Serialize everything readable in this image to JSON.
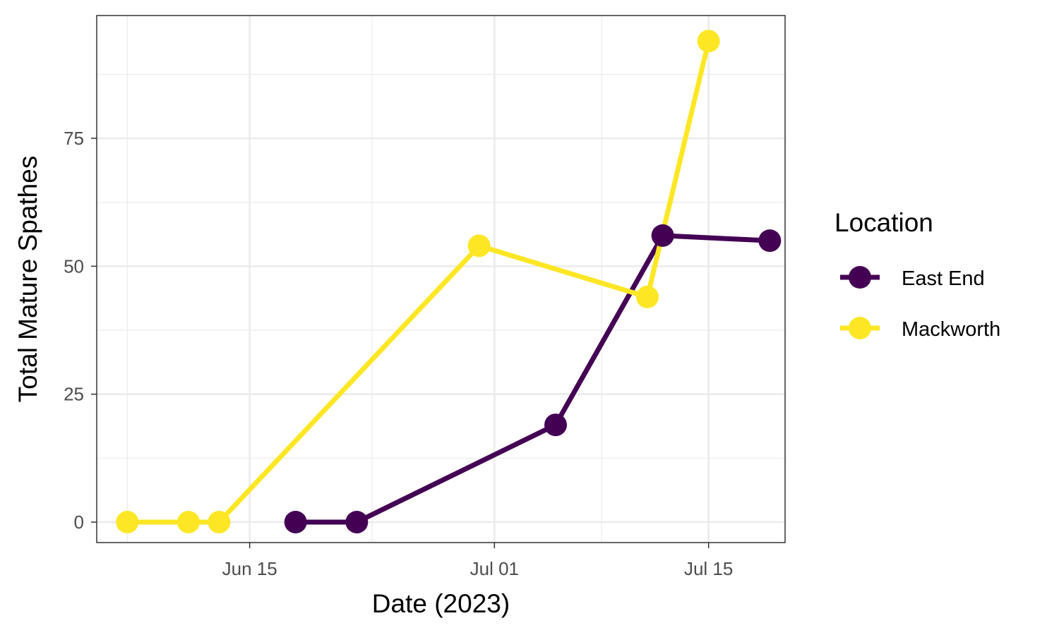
{
  "chart_data": {
    "type": "line",
    "title": "",
    "xlabel": "Date (2023)",
    "ylabel": "Total Mature Spathes",
    "xlim": [
      "2023-06-05",
      "2023-07-20"
    ],
    "ylim": [
      -4,
      99
    ],
    "x_ticks": [
      {
        "date": "2023-06-15",
        "label": "Jun 15"
      },
      {
        "date": "2023-07-01",
        "label": "Jul 01"
      },
      {
        "date": "2023-07-15",
        "label": "Jul 15"
      }
    ],
    "x_minor_ticks": [
      "2023-06-07",
      "2023-06-23",
      "2023-07-08"
    ],
    "y_ticks": [
      0,
      25,
      50,
      75
    ],
    "y_minor_ticks": [
      12.5,
      37.5,
      62.5,
      87.5
    ],
    "grid": true,
    "legend": {
      "title": "Location",
      "position": "right"
    },
    "series": [
      {
        "name": "East End",
        "color": "#440154",
        "points": [
          {
            "x": "2023-06-18",
            "y": 0
          },
          {
            "x": "2023-06-22",
            "y": 0
          },
          {
            "x": "2023-07-05",
            "y": 19
          },
          {
            "x": "2023-07-12",
            "y": 56
          },
          {
            "x": "2023-07-19",
            "y": 55
          }
        ]
      },
      {
        "name": "Mackworth",
        "color": "#FDE725",
        "points": [
          {
            "x": "2023-06-07",
            "y": 0
          },
          {
            "x": "2023-06-11",
            "y": 0
          },
          {
            "x": "2023-06-13",
            "y": 0
          },
          {
            "x": "2023-06-30",
            "y": 54
          },
          {
            "x": "2023-07-11",
            "y": 44
          },
          {
            "x": "2023-07-15",
            "y": 94
          }
        ]
      }
    ]
  }
}
